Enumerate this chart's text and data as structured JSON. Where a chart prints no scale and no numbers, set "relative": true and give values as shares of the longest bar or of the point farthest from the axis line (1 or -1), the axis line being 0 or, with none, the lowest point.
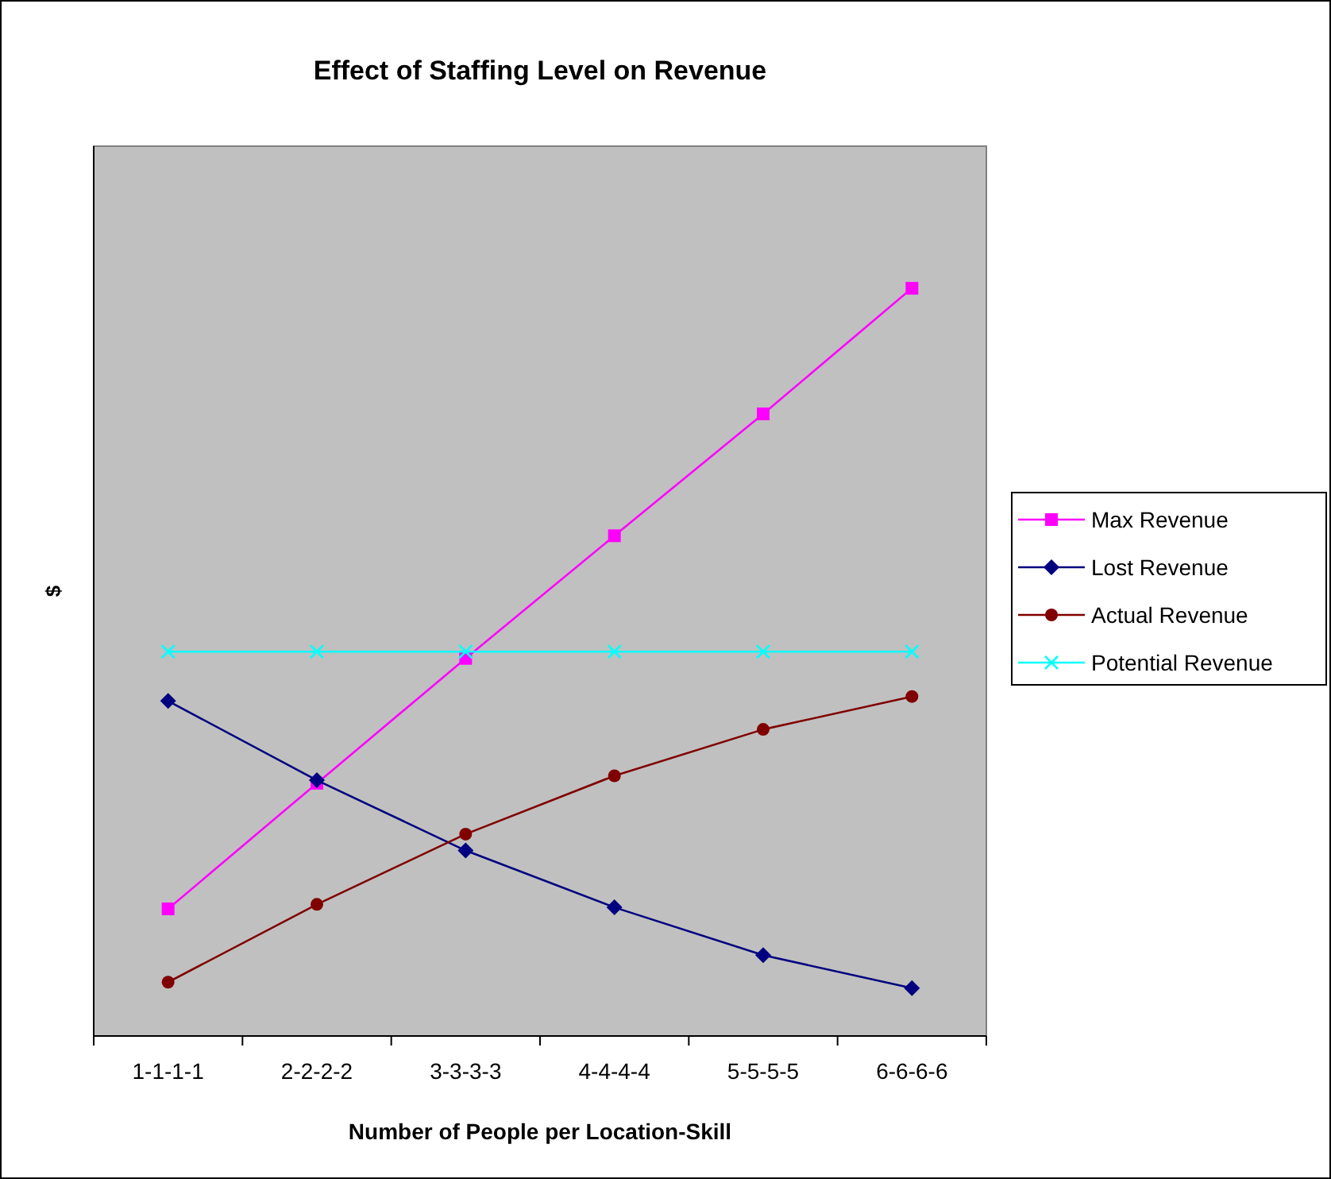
{
  "chart_data": {
    "type": "line",
    "title": "Effect of Staffing Level on Revenue",
    "xlabel": "Number of People per Location-Skill",
    "ylabel": "$",
    "relative": true,
    "legend": "right",
    "categories": [
      "1-1-1-1",
      "2-2-2-2",
      "3-3-3-3",
      "4-4-4-4",
      "5-5-5-5",
      "6-6-6-6"
    ],
    "series": [
      {
        "name": "Max Revenue",
        "color": "#ff00ff",
        "marker": "square",
        "values": [
          0.17,
          0.338,
          0.505,
          0.669,
          0.832,
          1
        ]
      },
      {
        "name": "Lost Revenue",
        "color": "#000080",
        "marker": "diamond",
        "values": [
          0.448,
          0.342,
          0.248,
          0.172,
          0.108,
          0.064
        ]
      },
      {
        "name": "Actual Revenue",
        "color": "#800000",
        "marker": "circle",
        "values": [
          0.072,
          0.176,
          0.27,
          0.348,
          0.41,
          0.454
        ]
      },
      {
        "name": "Potential Revenue",
        "color": "#00ffff",
        "marker": "cross",
        "values": [
          0.514,
          0.514,
          0.514,
          0.514,
          0.514,
          0.514
        ]
      }
    ]
  }
}
